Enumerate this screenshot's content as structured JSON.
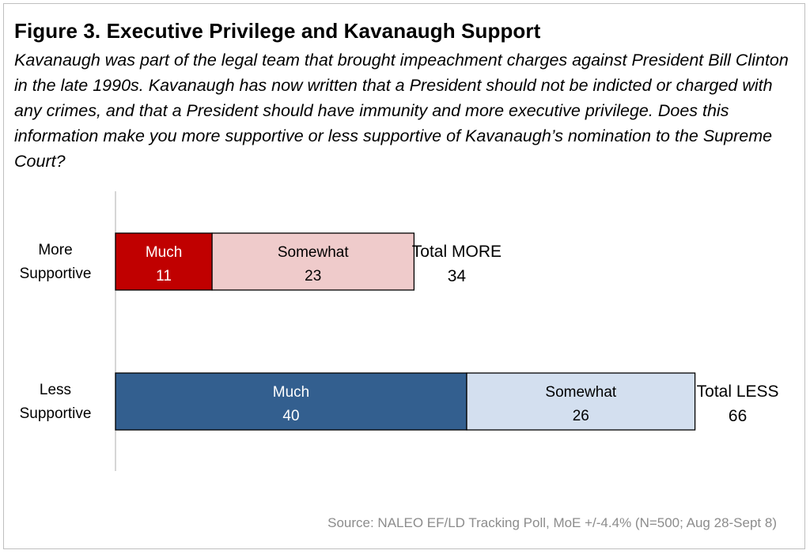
{
  "title": "Figure 3. Executive Privilege and Kavanaugh Support",
  "subtitle": "Kavanaugh was part of the legal team that brought impeachment charges against President Bill Clinton in the late 1990s. Kavanaugh has now written that a President should not be indicted or charged with any crimes, and that a President should have immunity and more executive privilege. Does this information make you more supportive or less supportive of Kavanaugh’s nomination to the Supreme Court?",
  "source": "Source: NALEO EF/LD Tracking Poll, MoE +/-4.4% (N=500; Aug 28-Sept 8)",
  "colors": {
    "axis": "#bfbfbf",
    "border": "#000000"
  },
  "chart_data": {
    "type": "bar",
    "orientation": "horizontal",
    "stacked": true,
    "categories": [
      "More Supportive",
      "Less Supportive"
    ],
    "category_lines": [
      [
        "More",
        "Supportive"
      ],
      [
        "Less",
        "Supportive"
      ]
    ],
    "series": [
      {
        "name": "Much",
        "values": [
          11,
          40
        ],
        "colors": [
          "#c00000",
          "#335f8f"
        ],
        "text_colors": [
          "#ffffff",
          "#ffffff"
        ]
      },
      {
        "name": "Somewhat",
        "values": [
          23,
          26
        ],
        "colors": [
          "#efcbcb",
          "#d3dfef"
        ],
        "text_colors": [
          "#000000",
          "#000000"
        ]
      }
    ],
    "totals": [
      {
        "label": "Total MORE",
        "value": 34
      },
      {
        "label": "Total LESS",
        "value": 66
      }
    ],
    "grid": false,
    "legend": "none"
  }
}
